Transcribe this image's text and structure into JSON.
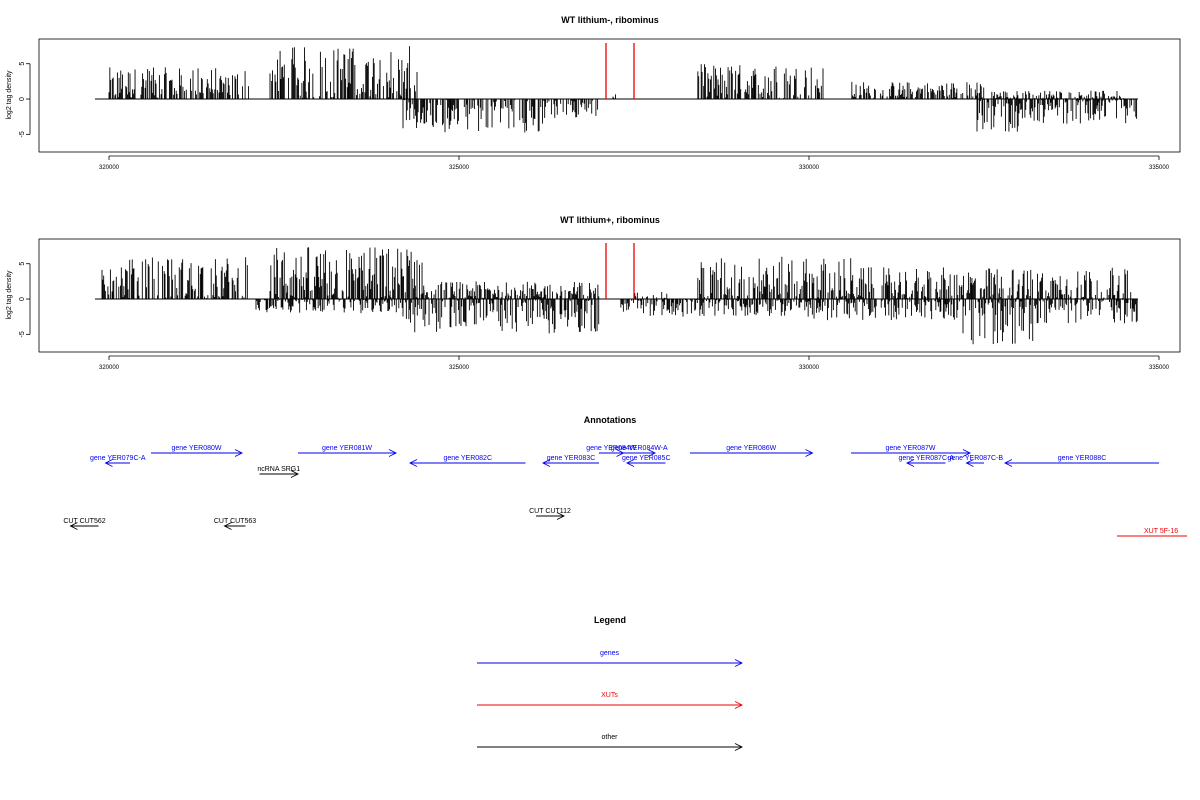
{
  "chart_data": [
    {
      "type": "bar",
      "title": "WT lithium-, ribominus",
      "xlabel": "",
      "ylabel": "log2 tag density",
      "xlim": [
        319000,
        335300
      ],
      "ylim": [
        -7.5,
        8.5
      ],
      "xticks": [
        320000,
        325000,
        330000,
        335000
      ],
      "yticks": [
        -5,
        0,
        5
      ],
      "baseline_range": [
        319800,
        334700
      ],
      "highlight_color": "#ee0000",
      "highlights": [
        327100,
        327500
      ],
      "forward_regions": [
        {
          "start": 320000,
          "end": 322000,
          "max": 4.5
        },
        {
          "start": 322300,
          "end": 324400,
          "max": 7.5
        },
        {
          "start": 327200,
          "end": 327250,
          "max": 1.0
        },
        {
          "start": 328400,
          "end": 330200,
          "max": 5.0
        },
        {
          "start": 330600,
          "end": 332500,
          "max": 2.5
        },
        {
          "start": 332600,
          "end": 334500,
          "max": 1.2
        }
      ],
      "reverse_regions": [
        {
          "start": 324200,
          "end": 326200,
          "max": 4.8
        },
        {
          "start": 326200,
          "end": 327000,
          "max": 2.8
        },
        {
          "start": 332400,
          "end": 333000,
          "max": 5.0
        },
        {
          "start": 333000,
          "end": 334700,
          "max": 3.5
        }
      ]
    },
    {
      "type": "bar",
      "title": "WT lithium+, ribominus",
      "xlabel": "",
      "ylabel": "log2 tag density",
      "xlim": [
        319000,
        335300
      ],
      "ylim": [
        -7.5,
        8.5
      ],
      "xticks": [
        320000,
        325000,
        330000,
        335000
      ],
      "yticks": [
        -5,
        0,
        5
      ],
      "baseline_range": [
        319800,
        334700
      ],
      "highlight_color": "#ee0000",
      "highlights": [
        327100,
        327500
      ],
      "forward_regions": [
        {
          "start": 319900,
          "end": 322000,
          "max": 6.0
        },
        {
          "start": 322300,
          "end": 324500,
          "max": 7.5
        },
        {
          "start": 324500,
          "end": 327000,
          "max": 2.5
        },
        {
          "start": 327500,
          "end": 328000,
          "max": 1.0
        },
        {
          "start": 328400,
          "end": 330600,
          "max": 6.0
        },
        {
          "start": 330600,
          "end": 334600,
          "max": 4.5
        }
      ],
      "reverse_regions": [
        {
          "start": 322100,
          "end": 324200,
          "max": 2.0
        },
        {
          "start": 324200,
          "end": 327000,
          "max": 5.0
        },
        {
          "start": 327300,
          "end": 330000,
          "max": 2.5
        },
        {
          "start": 330000,
          "end": 332200,
          "max": 3.0
        },
        {
          "start": 332200,
          "end": 333200,
          "max": 6.5
        },
        {
          "start": 333200,
          "end": 334700,
          "max": 3.5
        }
      ]
    }
  ],
  "annotations": {
    "title": "Annotations",
    "items": [
      {
        "label": "gene YER080W",
        "start": 320600,
        "end": 321900,
        "dir": "right",
        "row": 0,
        "color": "#0000ee"
      },
      {
        "label": "gene YER079C-A",
        "start": 319950,
        "end": 320300,
        "dir": "left",
        "row": 1,
        "color": "#0000ee"
      },
      {
        "label": "gene YER081W",
        "start": 322700,
        "end": 324100,
        "dir": "right",
        "row": 0,
        "color": "#0000ee"
      },
      {
        "label": "ncRNA SRG1",
        "start": 322150,
        "end": 322700,
        "dir": "right",
        "row": 2,
        "color": "#000000"
      },
      {
        "label": "gene YER082C",
        "start": 324300,
        "end": 325950,
        "dir": "left",
        "row": 1,
        "color": "#0000ee"
      },
      {
        "label": "gene YER083C",
        "start": 326200,
        "end": 327000,
        "dir": "left",
        "row": 1,
        "color": "#0000ee"
      },
      {
        "label": "gene YER084W",
        "start": 327000,
        "end": 327350,
        "dir": "right",
        "row": 0,
        "color": "#0000ee"
      },
      {
        "label": "gene YER084W-A",
        "start": 327350,
        "end": 327800,
        "dir": "right",
        "row": 0,
        "color": "#0000ee"
      },
      {
        "label": "gene YER085C",
        "start": 327400,
        "end": 327950,
        "dir": "left",
        "row": 1,
        "color": "#0000ee"
      },
      {
        "label": "gene YER086W",
        "start": 328300,
        "end": 330050,
        "dir": "right",
        "row": 0,
        "color": "#0000ee"
      },
      {
        "label": "gene YER087W",
        "start": 330600,
        "end": 332300,
        "dir": "right",
        "row": 0,
        "color": "#0000ee"
      },
      {
        "label": "gene YER087C-A",
        "start": 331400,
        "end": 331950,
        "dir": "left",
        "row": 1,
        "color": "#0000ee"
      },
      {
        "label": "gene YER087C-B",
        "start": 332250,
        "end": 332500,
        "dir": "left",
        "row": 1,
        "color": "#0000ee"
      },
      {
        "label": "gene YER088C",
        "start": 332800,
        "end": 335000,
        "dir": "left",
        "row": 1,
        "color": "#0000ee"
      },
      {
        "label": "CUT CUT562",
        "start": 319450,
        "end": 319850,
        "dir": "left",
        "row": 4,
        "color": "#000000"
      },
      {
        "label": "CUT CUT563",
        "start": 321650,
        "end": 321950,
        "dir": "left",
        "row": 4,
        "color": "#000000"
      },
      {
        "label": "CUT CUT112",
        "start": 326100,
        "end": 326500,
        "dir": "right",
        "row": 3,
        "color": "#000000"
      },
      {
        "label": "XUT 5F-16",
        "start": 334400,
        "end": 335400,
        "dir": "none",
        "row": 5,
        "color": "#ee0000"
      }
    ]
  },
  "legend": {
    "title": "Legend",
    "items": [
      {
        "label": "genes",
        "color": "#0000ee"
      },
      {
        "label": "XUTs",
        "color": "#ee0000"
      },
      {
        "label": "other",
        "color": "#000000"
      }
    ]
  }
}
